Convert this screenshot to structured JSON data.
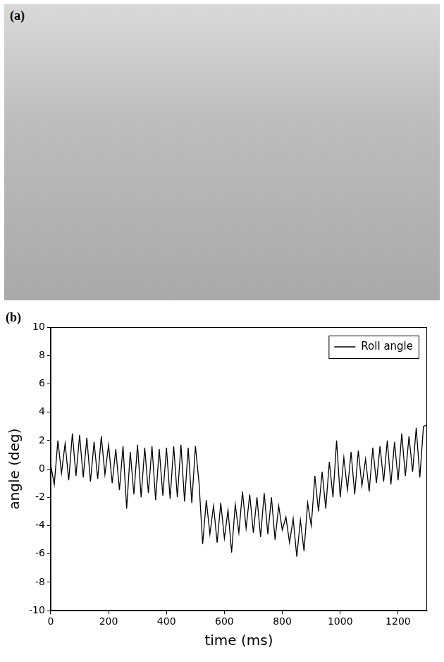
{
  "photo": {
    "label": "(a)"
  },
  "chart_data": {
    "type": "line",
    "panel_label": "(b)",
    "x_label": "time (ms)",
    "y_label": "angle (deg)",
    "xlim": [
      0,
      1300
    ],
    "xticks": [
      0,
      200,
      400,
      600,
      800,
      1000,
      1200
    ],
    "ylim": [
      -10,
      10
    ],
    "yticks": [
      -10,
      -8,
      -6,
      -4,
      -2,
      0,
      2,
      4,
      6,
      8,
      10
    ],
    "grid": false,
    "legend": "upper right",
    "x": [
      0,
      12.5,
      25,
      37.5,
      50,
      62.5,
      75,
      87.5,
      100,
      112.5,
      125,
      137.5,
      150,
      162.5,
      175,
      187.5,
      200,
      212.5,
      225,
      237.5,
      250,
      262.5,
      275,
      287.5,
      300,
      312.5,
      325,
      337.5,
      350,
      362.5,
      375,
      387.5,
      400,
      412.5,
      425,
      437.5,
      450,
      462.5,
      475,
      487.5,
      500,
      512.5,
      525,
      537.5,
      550,
      562.5,
      575,
      587.5,
      600,
      612.5,
      625,
      637.5,
      650,
      662.5,
      675,
      687.5,
      700,
      712.5,
      725,
      737.5,
      750,
      762.5,
      775,
      787.5,
      800,
      812.5,
      825,
      837.5,
      850,
      862.5,
      875,
      887.5,
      900,
      912.5,
      925,
      937.5,
      950,
      962.5,
      975,
      987.5,
      1000,
      1012.5,
      1025,
      1037.5,
      1050,
      1062.5,
      1075,
      1087.5,
      1100,
      1112.5,
      1125,
      1137.5,
      1150,
      1162.5,
      1175,
      1187.5,
      1200,
      1212.5,
      1225,
      1237.5,
      1250,
      1262.5,
      1275,
      1287.5,
      1300
    ],
    "series": [
      {
        "name": "Roll angle",
        "color": "#000000",
        "line_style": "solid",
        "values": [
          0.3,
          -1.1,
          2.0,
          -0.3,
          1.8,
          -0.8,
          2.5,
          -0.5,
          2.4,
          -0.6,
          2.2,
          -0.9,
          1.9,
          -0.7,
          2.3,
          -0.4,
          1.7,
          -1.0,
          1.4,
          -1.5,
          1.6,
          -2.8,
          1.2,
          -1.8,
          1.7,
          -2.0,
          1.5,
          -1.7,
          1.6,
          -2.2,
          1.4,
          -1.9,
          1.5,
          -2.1,
          1.6,
          -2.0,
          1.7,
          -2.3,
          1.5,
          -2.4,
          1.6,
          -1.0,
          -5.3,
          -2.2,
          -4.6,
          -2.6,
          -5.2,
          -2.4,
          -4.9,
          -2.9,
          -5.9,
          -2.5,
          -4.5,
          -1.6,
          -4.2,
          -1.8,
          -4.5,
          -2.0,
          -4.8,
          -1.7,
          -4.6,
          -2.0,
          -5.0,
          -2.6,
          -4.3,
          -3.4,
          -5.2,
          -3.5,
          -6.2,
          -3.6,
          -5.8,
          -2.4,
          -4.0,
          -0.5,
          -3.0,
          -0.2,
          -2.8,
          0.5,
          -2.0,
          2.0,
          -2.0,
          0.8,
          -1.5,
          1.2,
          -1.8,
          1.3,
          -1.2,
          0.7,
          -1.6,
          1.5,
          -1.0,
          1.6,
          -0.9,
          2.0,
          -1.1,
          1.9,
          -0.8,
          2.5,
          -0.5,
          2.3,
          -0.2,
          2.9,
          -0.6,
          3.0,
          3.1
        ]
      }
    ]
  }
}
